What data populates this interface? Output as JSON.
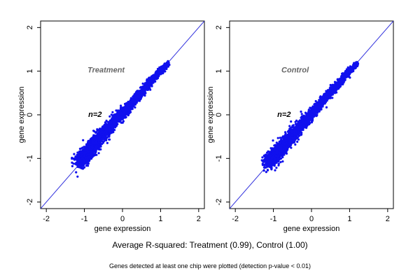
{
  "chart_data": [
    {
      "type": "scatter",
      "title": "",
      "panel_label": "Treatment",
      "annotation": "n=2",
      "xlabel": "gene expression",
      "ylabel": "gene expression",
      "xlim": [
        -2.15,
        2.15
      ],
      "ylim": [
        -2.15,
        2.15
      ],
      "xticks": [
        -2,
        -1,
        0,
        1,
        2
      ],
      "yticks": [
        -2,
        -1,
        0,
        1,
        2
      ],
      "grid": false,
      "reference_line": {
        "slope": 1,
        "intercept": 0
      },
      "series": [
        {
          "point_count_approx": 3000,
          "points": [
            [
              -1.1,
              -1.05
            ],
            [
              -1.0,
              -0.95
            ],
            [
              -0.9,
              -0.85
            ],
            [
              -0.8,
              -0.75
            ],
            [
              -0.7,
              -0.65
            ],
            [
              -0.6,
              -0.5
            ],
            [
              -0.5,
              -0.45
            ],
            [
              -0.4,
              -0.35
            ],
            [
              -0.3,
              -0.25
            ],
            [
              -0.2,
              -0.15
            ],
            [
              -0.1,
              -0.05
            ],
            [
              0.0,
              0.02
            ],
            [
              0.1,
              0.12
            ],
            [
              0.2,
              0.22
            ],
            [
              0.3,
              0.32
            ],
            [
              0.4,
              0.42
            ],
            [
              0.5,
              0.52
            ],
            [
              0.6,
              0.62
            ],
            [
              0.7,
              0.72
            ],
            [
              0.8,
              0.82
            ],
            [
              0.9,
              0.92
            ],
            [
              1.0,
              1.02
            ],
            [
              1.1,
              1.1
            ],
            [
              1.2,
              1.18
            ]
          ]
        }
      ]
    },
    {
      "type": "scatter",
      "title": "",
      "panel_label": "Control",
      "annotation": "n=2",
      "xlabel": "gene expression",
      "ylabel": "gene expression",
      "xlim": [
        -2.15,
        2.15
      ],
      "ylim": [
        -2.15,
        2.15
      ],
      "xticks": [
        -2,
        -1,
        0,
        1,
        2
      ],
      "yticks": [
        -2,
        -1,
        0,
        1,
        2
      ],
      "grid": false,
      "reference_line": {
        "slope": 1,
        "intercept": 0
      },
      "series": [
        {
          "point_count_approx": 3000,
          "points": [
            [
              -1.1,
              -1.07
            ],
            [
              -1.0,
              -0.97
            ],
            [
              -0.9,
              -0.87
            ],
            [
              -0.8,
              -0.77
            ],
            [
              -0.7,
              -0.67
            ],
            [
              -0.6,
              -0.57
            ],
            [
              -0.5,
              -0.47
            ],
            [
              -0.4,
              -0.37
            ],
            [
              -0.3,
              -0.27
            ],
            [
              -0.2,
              -0.17
            ],
            [
              -0.1,
              -0.07
            ],
            [
              0.0,
              0.01
            ],
            [
              0.1,
              0.11
            ],
            [
              0.2,
              0.21
            ],
            [
              0.3,
              0.31
            ],
            [
              0.4,
              0.41
            ],
            [
              0.5,
              0.51
            ],
            [
              0.6,
              0.61
            ],
            [
              0.7,
              0.71
            ],
            [
              0.8,
              0.81
            ],
            [
              0.9,
              0.91
            ],
            [
              1.0,
              1.01
            ],
            [
              1.1,
              1.1
            ],
            [
              1.2,
              1.19
            ]
          ]
        }
      ]
    }
  ],
  "summary": "Average R-squared: Treatment (0.99), Control (1.00)",
  "footnote": "Genes detected at least one chip were plotted (detection p-value < 0.01)",
  "colors": {
    "points": "#1010ee",
    "reference_line": "#3030dd",
    "panel_label": "#666666",
    "axes": "#000000"
  }
}
